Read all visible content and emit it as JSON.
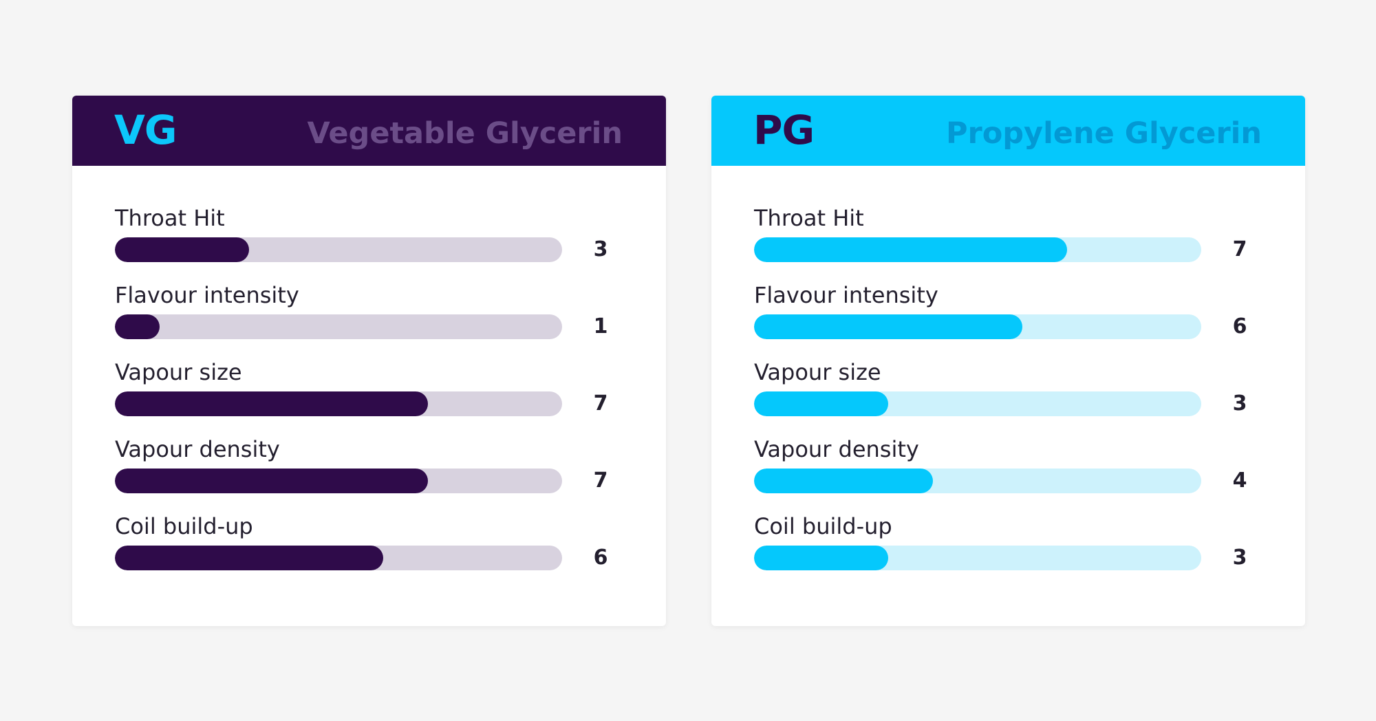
{
  "chart_data": [
    {
      "type": "bar",
      "abbr": "VG",
      "title": "Vegetable Glycerin",
      "categories": [
        "Throat Hit",
        "Flavour intensity",
        "Vapour size",
        "Vapour density",
        "Coil build-up"
      ],
      "values": [
        3,
        1,
        7,
        7,
        6
      ],
      "xlim": [
        0,
        10
      ],
      "colors": {
        "header_bg": "#2f0b4a",
        "abbr": "#0cc7fb",
        "fullname": "#6b4d88",
        "bar_fill": "#2f0b4a",
        "bar_track": "#d8d2df"
      }
    },
    {
      "type": "bar",
      "abbr": "PG",
      "title": "Propylene Glycerin",
      "categories": [
        "Throat Hit",
        "Flavour intensity",
        "Vapour size",
        "Vapour density",
        "Coil build-up"
      ],
      "values": [
        7,
        6,
        3,
        4,
        3
      ],
      "xlim": [
        0,
        10
      ],
      "colors": {
        "header_bg": "#05c8fc",
        "abbr": "#2f0b4a",
        "fullname": "#0399d4",
        "bar_fill": "#05c8fc",
        "bar_track": "#cdf2fc"
      }
    }
  ]
}
